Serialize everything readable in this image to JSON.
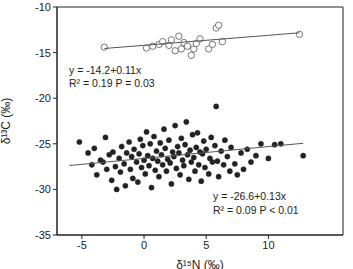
{
  "chart_data": {
    "type": "scatter",
    "x_label": "δ¹⁵N (‰)",
    "y_label": "δ¹³C (‰)",
    "xlim": [
      -7,
      16
    ],
    "ylim": [
      -35,
      -10
    ],
    "xticks": [
      -5,
      0,
      5,
      10
    ],
    "yticks": [
      -35,
      -30,
      -25,
      -20,
      -15,
      -10
    ],
    "annotations": [
      "y = -14.2+0.11x",
      "R² = 0.19 P = 0.03",
      "y = -26.6+0.13x",
      "R² = 0.09 P < 0.01"
    ],
    "series": [
      {
        "type": "scatter",
        "marker": "open circle",
        "color": "#555555",
        "x": [
          -3.2,
          0.2,
          0.7,
          1.2,
          1.5,
          2.0,
          2.2,
          2.5,
          2.8,
          3.0,
          3.2,
          3.5,
          3.8,
          4.0,
          4.2,
          4.5,
          5.2,
          5.5,
          5.8,
          6.0,
          6.3,
          12.5
        ],
        "values": [
          -14.4,
          -14.5,
          -14.3,
          -14.1,
          -13.8,
          -14.2,
          -13.6,
          -14.8,
          -13.2,
          -14.6,
          -13.9,
          -14.3,
          -15.3,
          -14.6,
          -14.0,
          -13.5,
          -14.6,
          -14.1,
          -12.3,
          -12.0,
          -13.8,
          -13.0
        ]
      },
      {
        "type": "scatter",
        "marker": "filled circle",
        "color": "#222222",
        "x": [
          -5.2,
          -4.5,
          -4.2,
          -4.0,
          -3.8,
          -3.5,
          -3.3,
          -3.1,
          -3.0,
          -2.8,
          -2.6,
          -2.5,
          -2.3,
          -2.2,
          -2.0,
          -1.9,
          -1.8,
          -1.6,
          -1.5,
          -1.4,
          -1.2,
          -1.1,
          -1.0,
          -0.9,
          -0.8,
          -0.6,
          -0.5,
          -0.4,
          -0.3,
          -0.2,
          -0.1,
          0.0,
          0.1,
          0.2,
          0.3,
          0.4,
          0.5,
          0.6,
          0.7,
          0.8,
          0.9,
          1.0,
          1.1,
          1.2,
          1.3,
          1.4,
          1.5,
          1.6,
          1.7,
          1.8,
          1.9,
          2.0,
          2.1,
          2.2,
          2.3,
          2.4,
          2.5,
          2.6,
          2.7,
          2.8,
          2.9,
          3.0,
          3.1,
          3.2,
          3.3,
          3.4,
          3.5,
          3.6,
          3.7,
          3.8,
          3.9,
          4.0,
          4.1,
          4.2,
          4.3,
          4.4,
          4.5,
          4.6,
          4.7,
          4.8,
          4.9,
          5.0,
          5.2,
          5.3,
          5.4,
          5.5,
          5.7,
          5.8,
          5.9,
          6.0,
          6.2,
          6.4,
          6.5,
          6.7,
          6.9,
          7.0,
          7.3,
          7.5,
          7.8,
          8.0,
          8.3,
          8.6,
          9.0,
          9.4,
          10.0,
          10.5,
          11.0,
          12.8
        ],
        "values": [
          -24.8,
          -26.0,
          -27.3,
          -25.5,
          -28.4,
          -26.8,
          -27.0,
          -24.3,
          -27.8,
          -26.2,
          -29.0,
          -25.9,
          -27.5,
          -30.0,
          -26.6,
          -28.1,
          -25.3,
          -27.2,
          -29.6,
          -26.0,
          -24.8,
          -27.8,
          -26.4,
          -28.8,
          -25.6,
          -27.0,
          -29.2,
          -26.1,
          -24.5,
          -27.6,
          -25.2,
          -26.8,
          -28.3,
          -23.7,
          -26.3,
          -27.4,
          -25.0,
          -29.8,
          -26.6,
          -24.2,
          -27.9,
          -25.8,
          -26.9,
          -28.6,
          -24.9,
          -26.2,
          -27.3,
          -23.4,
          -25.5,
          -28.0,
          -26.7,
          -24.6,
          -27.1,
          -29.4,
          -25.9,
          -26.4,
          -23.0,
          -27.7,
          -25.3,
          -26.0,
          -28.4,
          -24.4,
          -26.8,
          -27.4,
          -25.1,
          -22.6,
          -26.2,
          -28.9,
          -25.7,
          -27.0,
          -24.0,
          -26.5,
          -28.0,
          -25.4,
          -23.8,
          -27.3,
          -25.9,
          -29.1,
          -26.1,
          -24.7,
          -27.6,
          -25.6,
          -28.3,
          -26.6,
          -24.3,
          -27.0,
          -25.2,
          -20.9,
          -26.9,
          -28.6,
          -25.8,
          -27.3,
          -24.6,
          -26.4,
          -28.0,
          -25.4,
          -27.2,
          -28.4,
          -26.0,
          -27.8,
          -25.6,
          -27.0,
          -26.3,
          -25.0,
          -26.6,
          -25.1,
          -25.0,
          -26.3
        ]
      },
      {
        "type": "line",
        "line_style": "solid",
        "color": "#555555",
        "x": [
          -3.2,
          12.5
        ],
        "values": [
          -14.55,
          -12.83
        ]
      },
      {
        "type": "line",
        "line_style": "solid",
        "color": "#555555",
        "x": [
          -6,
          12.8
        ],
        "values": [
          -27.38,
          -24.94
        ]
      }
    ]
  }
}
